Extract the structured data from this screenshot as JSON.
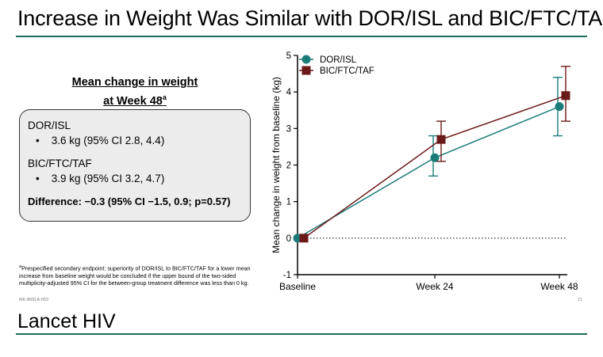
{
  "slide": {
    "title": "Increase in Weight Was Similar with DOR/ISL and BIC/FTC/TAF",
    "source": "Lancet HIV",
    "code": "MK-8591A-053",
    "page_number": "11",
    "rule_color": "#1f6b5a"
  },
  "summary": {
    "heading_line1": "Mean change in weight",
    "heading_line2": "at Week 48",
    "heading_sup": "a",
    "arms": [
      {
        "name": "DOR/ISL",
        "value": "3.6 kg (95% CI 2.8, 4.4)"
      },
      {
        "name": "BIC/FTC/TAF",
        "value": "3.9 kg (95% CI 3.2, 4.7)"
      }
    ],
    "difference": "Difference: −0.3 (95% CI −1.5, 0.9; p=0.57)"
  },
  "footnote": {
    "marker": "a",
    "text": "Prespecified secondary endpoint: superiority of DOR/ISL to BIC/FTC/TAF for a lower mean increase from baseline weight would be concluded if the upper bound of the two-sided multiplicity-adjusted 95% CI for the between-group treatment difference was less than 0 kg."
  },
  "chart_data": {
    "type": "line",
    "categories": [
      "Baseline",
      "Week 24",
      "Week 48"
    ],
    "ylabel": "Mean change in weight from baseline (kg)",
    "xlabel": "",
    "ylim": [
      -1,
      5
    ],
    "yticks": [
      -1,
      0,
      1,
      2,
      3,
      4,
      5
    ],
    "reference_line_y": 0,
    "legend_position": "top-left",
    "series": [
      {
        "name": "DOR/ISL",
        "values": [
          0,
          2.2,
          3.6
        ],
        "ci_low": [
          0,
          1.7,
          2.8
        ],
        "ci_high": [
          0,
          2.8,
          4.4
        ],
        "color": "#1b7b78",
        "marker": "circle"
      },
      {
        "name": "BIC/FTC/TAF",
        "values": [
          0,
          2.7,
          3.9
        ],
        "ci_low": [
          0,
          2.1,
          3.2
        ],
        "ci_high": [
          0,
          3.2,
          4.7
        ],
        "color": "#6b1a1a",
        "marker": "square"
      }
    ]
  }
}
